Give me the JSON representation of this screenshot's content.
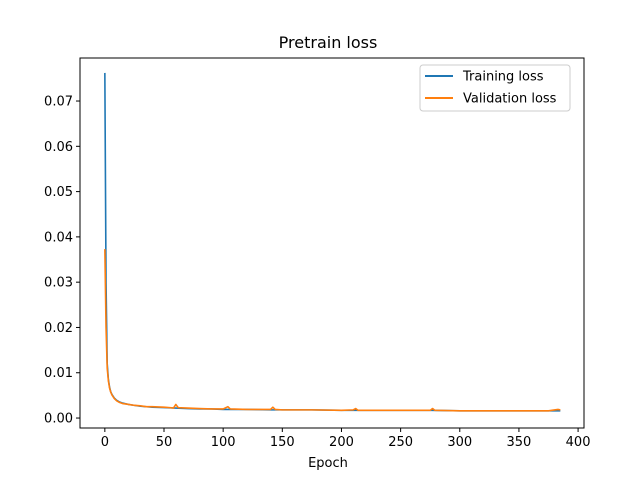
{
  "chart_data": {
    "type": "line",
    "title": "Pretrain loss",
    "xlabel": "Epoch",
    "ylabel": "",
    "xlim": [
      -21,
      405
    ],
    "ylim": [
      -0.0022,
      0.0795
    ],
    "xticks": [
      0,
      50,
      100,
      150,
      200,
      250,
      300,
      350,
      400
    ],
    "yticks": [
      0.0,
      0.01,
      0.02,
      0.03,
      0.04,
      0.05,
      0.06,
      0.07
    ],
    "ytick_labels": [
      "0.00",
      "0.01",
      "0.02",
      "0.03",
      "0.04",
      "0.05",
      "0.06",
      "0.07"
    ],
    "legend_position": "top-right",
    "grid": false,
    "series": [
      {
        "name": "Training loss",
        "color": "#1f77b4",
        "x": [
          0,
          1,
          2,
          3,
          4,
          5,
          6,
          8,
          10,
          12,
          15,
          20,
          25,
          30,
          40,
          50,
          60,
          70,
          80,
          90,
          100,
          120,
          140,
          150,
          175,
          200,
          225,
          250,
          275,
          300,
          325,
          350,
          375,
          385
        ],
        "y": [
          0.0762,
          0.03,
          0.012,
          0.0085,
          0.0068,
          0.0058,
          0.0052,
          0.0044,
          0.0039,
          0.0036,
          0.0033,
          0.003,
          0.0028,
          0.0026,
          0.0024,
          0.0023,
          0.0022,
          0.0021,
          0.002,
          0.002,
          0.0019,
          0.0019,
          0.0018,
          0.0018,
          0.0018,
          0.0017,
          0.0017,
          0.0017,
          0.0017,
          0.0016,
          0.0016,
          0.0016,
          0.0016,
          0.0016
        ]
      },
      {
        "name": "Validation loss",
        "color": "#ff7f0e",
        "x": [
          0,
          1,
          2,
          3,
          4,
          5,
          6,
          8,
          10,
          12,
          15,
          20,
          25,
          30,
          35,
          40,
          50,
          55,
          58,
          60,
          62,
          70,
          80,
          90,
          100,
          104,
          106,
          120,
          140,
          142,
          144,
          150,
          175,
          200,
          210,
          212,
          214,
          225,
          250,
          275,
          277,
          279,
          300,
          325,
          350,
          375,
          383,
          385
        ],
        "y": [
          0.0373,
          0.02,
          0.011,
          0.0082,
          0.0066,
          0.0057,
          0.0051,
          0.0043,
          0.0038,
          0.0035,
          0.0032,
          0.003,
          0.0028,
          0.0027,
          0.0025,
          0.0025,
          0.0024,
          0.0023,
          0.0022,
          0.003,
          0.0023,
          0.0022,
          0.0021,
          0.002,
          0.002,
          0.0025,
          0.002,
          0.0019,
          0.0019,
          0.0024,
          0.0019,
          0.0018,
          0.0018,
          0.0017,
          0.0018,
          0.0021,
          0.0017,
          0.0017,
          0.0017,
          0.0017,
          0.0021,
          0.0017,
          0.0016,
          0.0016,
          0.0016,
          0.0016,
          0.0019,
          0.0018
        ]
      }
    ]
  }
}
